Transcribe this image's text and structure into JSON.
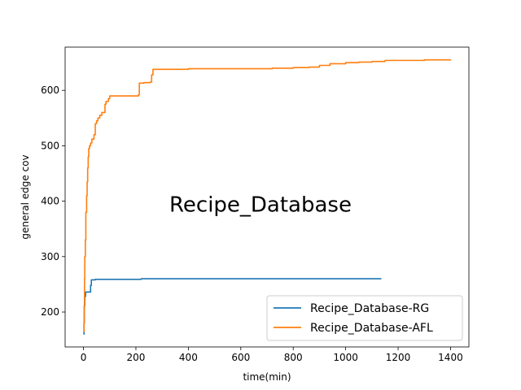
{
  "chart_data": {
    "type": "line",
    "title": "",
    "annotation": "Recipe_Database",
    "xlabel": "time(min)",
    "ylabel": "general edge cov",
    "xlim": [
      -70,
      1470
    ],
    "ylim": [
      137,
      678
    ],
    "xticks": [
      0,
      200,
      400,
      600,
      800,
      1000,
      1200,
      1400
    ],
    "yticks": [
      200,
      300,
      400,
      500,
      600
    ],
    "grid": false,
    "legend_position": "lower-right",
    "series": [
      {
        "name": "Recipe_Database-RG",
        "color": "#1f77b4",
        "step": true,
        "points": [
          [
            0,
            160
          ],
          [
            2,
            180
          ],
          [
            3,
            212
          ],
          [
            5,
            228
          ],
          [
            8,
            236
          ],
          [
            25,
            236
          ],
          [
            27,
            248
          ],
          [
            30,
            258
          ],
          [
            45,
            259
          ],
          [
            215,
            259
          ],
          [
            220,
            260
          ],
          [
            1136,
            260
          ]
        ]
      },
      {
        "name": "Recipe_Database-AFL",
        "color": "#ff7f0e",
        "step": true,
        "points": [
          [
            0,
            165
          ],
          [
            2,
            180
          ],
          [
            3,
            210
          ],
          [
            4,
            260
          ],
          [
            5,
            300
          ],
          [
            7,
            330
          ],
          [
            9,
            380
          ],
          [
            12,
            410
          ],
          [
            14,
            435
          ],
          [
            16,
            460
          ],
          [
            18,
            480
          ],
          [
            20,
            495
          ],
          [
            23,
            500
          ],
          [
            27,
            505
          ],
          [
            32,
            512
          ],
          [
            40,
            520
          ],
          [
            45,
            540
          ],
          [
            50,
            545
          ],
          [
            55,
            550
          ],
          [
            62,
            555
          ],
          [
            70,
            560
          ],
          [
            80,
            560
          ],
          [
            82,
            575
          ],
          [
            86,
            580
          ],
          [
            95,
            585
          ],
          [
            100,
            590
          ],
          [
            110,
            590
          ],
          [
            210,
            592
          ],
          [
            213,
            613
          ],
          [
            230,
            614
          ],
          [
            255,
            615
          ],
          [
            260,
            628
          ],
          [
            265,
            638
          ],
          [
            320,
            638
          ],
          [
            400,
            639
          ],
          [
            600,
            639
          ],
          [
            720,
            640
          ],
          [
            800,
            641
          ],
          [
            860,
            642
          ],
          [
            900,
            645
          ],
          [
            940,
            648
          ],
          [
            1000,
            650
          ],
          [
            1050,
            651
          ],
          [
            1100,
            652
          ],
          [
            1150,
            654
          ],
          [
            1200,
            654
          ],
          [
            1300,
            655
          ],
          [
            1400,
            656
          ]
        ]
      }
    ]
  }
}
